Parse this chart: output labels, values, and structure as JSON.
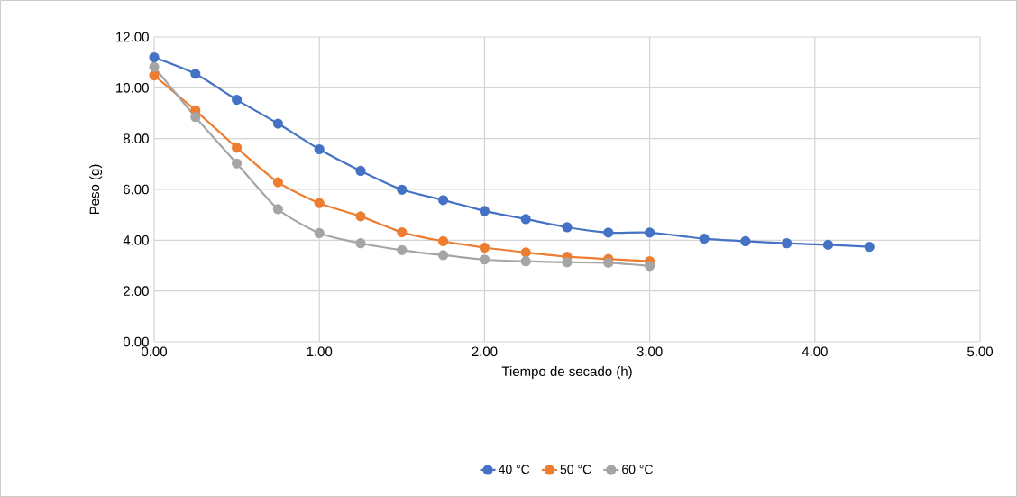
{
  "chart_data": {
    "type": "line",
    "xlabel": "Tiempo de secado (h)",
    "ylabel": "Peso (g)",
    "xlim": [
      0,
      5
    ],
    "ylim": [
      0,
      12
    ],
    "xticks": [
      {
        "value": 0,
        "label": "0.00"
      },
      {
        "value": 1,
        "label": "1.00"
      },
      {
        "value": 2,
        "label": "2.00"
      },
      {
        "value": 3,
        "label": "3.00"
      },
      {
        "value": 4,
        "label": "4.00"
      },
      {
        "value": 5,
        "label": "5.00"
      }
    ],
    "yticks": [
      {
        "value": 0,
        "label": "0.00"
      },
      {
        "value": 2,
        "label": "2.00"
      },
      {
        "value": 4,
        "label": "4.00"
      },
      {
        "value": 6,
        "label": "6.00"
      },
      {
        "value": 8,
        "label": "8.00"
      },
      {
        "value": 10,
        "label": "10.00"
      },
      {
        "value": 12,
        "label": "12.00"
      }
    ],
    "grid": true,
    "legend": "bottom",
    "marker": "circle",
    "series": [
      {
        "name": "40 °C",
        "color": "#4472c4",
        "x": [
          0,
          0.25,
          0.5,
          0.75,
          1.0,
          1.25,
          1.5,
          1.75,
          2.0,
          2.25,
          2.5,
          2.75,
          3.0,
          3.33,
          3.58,
          3.83,
          4.08,
          4.33
        ],
        "values": [
          11.2,
          10.55,
          9.53,
          8.59,
          7.58,
          6.73,
          5.99,
          5.58,
          5.15,
          4.83,
          4.51,
          4.3,
          4.3,
          4.06,
          3.96,
          3.88,
          3.82,
          3.74
        ]
      },
      {
        "name": "50 °C",
        "color": "#ed7d31",
        "x": [
          0,
          0.25,
          0.5,
          0.75,
          1.0,
          1.25,
          1.5,
          1.75,
          2.0,
          2.25,
          2.5,
          2.75,
          3.0
        ],
        "values": [
          10.49,
          9.11,
          7.64,
          6.28,
          5.46,
          4.94,
          4.31,
          3.96,
          3.71,
          3.52,
          3.35,
          3.26,
          3.17
        ]
      },
      {
        "name": "60 °C",
        "color": "#a5a5a5",
        "x": [
          0,
          0.25,
          0.5,
          0.75,
          1.0,
          1.25,
          1.5,
          1.75,
          2.0,
          2.25,
          2.5,
          2.75,
          3.0
        ],
        "values": [
          10.82,
          8.85,
          7.02,
          5.22,
          4.28,
          3.88,
          3.61,
          3.41,
          3.24,
          3.17,
          3.13,
          3.11,
          2.99
        ]
      }
    ]
  }
}
